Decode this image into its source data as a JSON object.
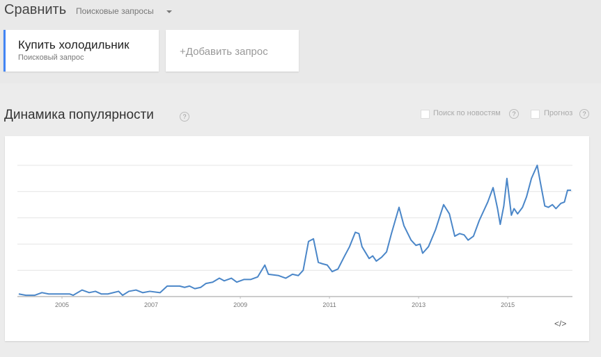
{
  "header": {
    "title": "Сравнить",
    "dropdown": "Поисковые запросы"
  },
  "terms": [
    {
      "label": "Купить холодильник",
      "sublabel": "Поисковый запрос"
    }
  ],
  "add_term": "+Добавить запрос",
  "section": {
    "title": "Динамика популярности",
    "options": [
      "Поиск по новостям",
      "Прогноз"
    ]
  },
  "help_icon": "?",
  "embed_icon": "</>",
  "chart_data": {
    "type": "line",
    "color": "#4a86c8",
    "x": [
      2004.03,
      2004.19,
      2004.39,
      2004.55,
      2004.7,
      2004.78,
      2004.94,
      2005.17,
      2005.25,
      2005.45,
      2005.61,
      2005.75,
      2005.88,
      2006.03,
      2006.27,
      2006.36,
      2006.5,
      2006.66,
      2006.81,
      2006.97,
      2007.2,
      2007.36,
      2007.64,
      2007.75,
      2007.86,
      2007.98,
      2008.11,
      2008.23,
      2008.38,
      2008.53,
      2008.64,
      2008.8,
      2008.92,
      2009.08,
      2009.23,
      2009.39,
      2009.55,
      2009.63,
      2009.86,
      2010.02,
      2010.17,
      2010.3,
      2010.41,
      2010.53,
      2010.64,
      2010.75,
      2010.84,
      2010.95,
      2011.06,
      2011.19,
      2011.34,
      2011.45,
      2011.58,
      2011.66,
      2011.73,
      2011.89,
      2011.97,
      2012.05,
      2012.17,
      2012.28,
      2012.39,
      2012.56,
      2012.67,
      2012.83,
      2012.94,
      2013.03,
      2013.09,
      2013.22,
      2013.38,
      2013.56,
      2013.69,
      2013.81,
      2013.92,
      2014.02,
      2014.11,
      2014.23,
      2014.36,
      2014.55,
      2014.67,
      2014.77,
      2014.83,
      2014.91,
      2014.98,
      2015.08,
      2015.14,
      2015.22,
      2015.33,
      2015.42,
      2015.53,
      2015.66,
      2015.73,
      2015.83,
      2015.91,
      2016.0,
      2016.08,
      2016.19,
      2016.27,
      2016.34,
      2016.42
    ],
    "values": [
      2,
      1,
      1,
      3,
      2,
      2,
      2,
      2,
      1,
      5,
      3,
      4,
      2,
      2,
      4,
      1,
      4,
      5,
      3,
      4,
      3,
      8,
      8,
      7,
      8,
      6,
      7,
      10,
      11,
      14,
      12,
      14,
      11,
      13,
      13,
      15,
      24,
      17,
      16,
      14,
      17,
      16,
      20,
      42,
      44,
      26,
      25,
      24,
      19,
      21,
      31,
      38,
      49,
      48,
      38,
      29,
      31,
      27,
      30,
      34,
      48,
      68,
      54,
      43,
      39,
      40,
      33,
      38,
      51,
      70,
      63,
      46,
      48,
      47,
      43,
      46,
      58,
      72,
      83,
      67,
      55,
      69,
      90,
      62,
      67,
      63,
      68,
      76,
      90,
      100,
      87,
      69,
      68,
      70,
      67,
      71,
      72,
      81,
      81
    ],
    "xlim": [
      2004,
      2016.45
    ],
    "ylim": [
      0,
      100
    ],
    "xticks": [
      2005,
      2007,
      2009,
      2011,
      2013,
      2015
    ],
    "ygrid": [
      0,
      20,
      40,
      60,
      80,
      100
    ],
    "grid": true
  }
}
